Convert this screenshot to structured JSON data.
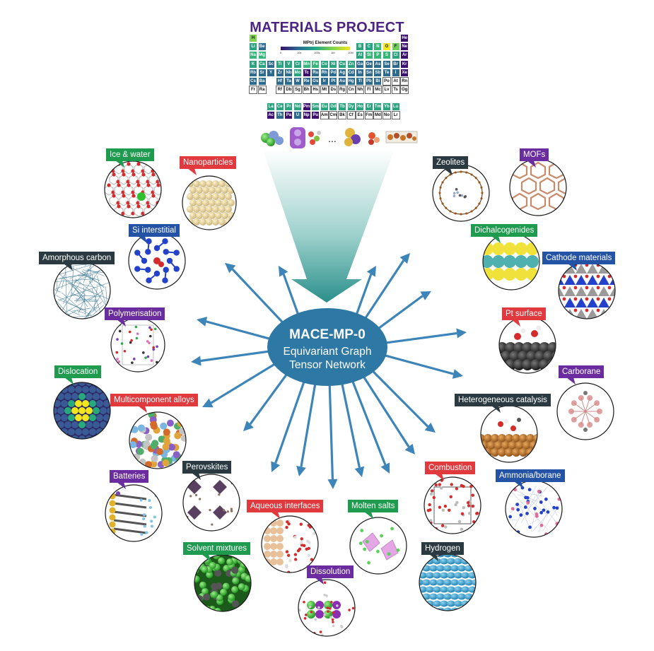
{
  "header": {
    "title": "MATERIALS PROJECT"
  },
  "periodic_table": {
    "colorbar_title": "MPtrj Element Counts",
    "colorbar_ticks": [
      "0",
      "10k",
      "100k",
      "1M",
      "10M"
    ],
    "elements": [
      {
        "s": "H",
        "r": 0,
        "c": 0,
        "col": "#7fd34e"
      },
      {
        "s": "He",
        "r": 0,
        "c": 17,
        "col": "#3b0f70"
      },
      {
        "s": "Li",
        "r": 1,
        "c": 0,
        "col": "#2aa37f"
      },
      {
        "s": "Be",
        "r": 1,
        "c": 1,
        "col": "#2c6a8e"
      },
      {
        "s": "B",
        "r": 1,
        "c": 12,
        "col": "#2aa37f"
      },
      {
        "s": "C",
        "r": 1,
        "c": 13,
        "col": "#21a685"
      },
      {
        "s": "N",
        "r": 1,
        "c": 14,
        "col": "#35b779"
      },
      {
        "s": "O",
        "r": 1,
        "c": 15,
        "col": "#f3e51e"
      },
      {
        "s": "F",
        "r": 1,
        "c": 16,
        "col": "#6ece58"
      },
      {
        "s": "Ne",
        "r": 1,
        "c": 17,
        "col": "#3b0f70"
      },
      {
        "s": "Na",
        "r": 2,
        "c": 0,
        "col": "#35b779"
      },
      {
        "s": "Mg",
        "r": 2,
        "c": 1,
        "col": "#35b779"
      },
      {
        "s": "Al",
        "r": 2,
        "c": 12,
        "col": "#2aa37f"
      },
      {
        "s": "Si",
        "r": 2,
        "c": 13,
        "col": "#35b779"
      },
      {
        "s": "P",
        "r": 2,
        "c": 14,
        "col": "#35b779"
      },
      {
        "s": "S",
        "r": 2,
        "c": 15,
        "col": "#35b779"
      },
      {
        "s": "Cl",
        "r": 2,
        "c": 16,
        "col": "#2aa37f"
      },
      {
        "s": "Ar",
        "r": 2,
        "c": 17,
        "col": "#3b0f70"
      },
      {
        "s": "K",
        "r": 3,
        "c": 0,
        "col": "#2aa37f"
      },
      {
        "s": "Ca",
        "r": 3,
        "c": 1,
        "col": "#2aa37f"
      },
      {
        "s": "Sc",
        "r": 3,
        "c": 2,
        "col": "#2c6a8e"
      },
      {
        "s": "Ti",
        "r": 3,
        "c": 3,
        "col": "#2aa37f"
      },
      {
        "s": "V",
        "r": 3,
        "c": 4,
        "col": "#2aa37f"
      },
      {
        "s": "Cr",
        "r": 3,
        "c": 5,
        "col": "#2aa37f"
      },
      {
        "s": "Mn",
        "r": 3,
        "c": 6,
        "col": "#35b779"
      },
      {
        "s": "Fe",
        "r": 3,
        "c": 7,
        "col": "#35b779"
      },
      {
        "s": "Co",
        "r": 3,
        "c": 8,
        "col": "#2aa37f"
      },
      {
        "s": "Ni",
        "r": 3,
        "c": 9,
        "col": "#2aa37f"
      },
      {
        "s": "Cu",
        "r": 3,
        "c": 10,
        "col": "#2aa37f"
      },
      {
        "s": "Zn",
        "r": 3,
        "c": 11,
        "col": "#2aa37f"
      },
      {
        "s": "Ga",
        "r": 3,
        "c": 12,
        "col": "#2c6a8e"
      },
      {
        "s": "Ge",
        "r": 3,
        "c": 13,
        "col": "#2c6a8e"
      },
      {
        "s": "As",
        "r": 3,
        "c": 14,
        "col": "#2c6a8e"
      },
      {
        "s": "Se",
        "r": 3,
        "c": 15,
        "col": "#2c6a8e"
      },
      {
        "s": "Br",
        "r": 3,
        "c": 16,
        "col": "#2c6a8e"
      },
      {
        "s": "Kr",
        "r": 3,
        "c": 17,
        "col": "#3b0f70"
      },
      {
        "s": "Rb",
        "r": 4,
        "c": 0,
        "col": "#2c6a8e"
      },
      {
        "s": "Sr",
        "r": 4,
        "c": 1,
        "col": "#2c6a8e"
      },
      {
        "s": "Y",
        "r": 4,
        "c": 2,
        "col": "#2c6a8e"
      },
      {
        "s": "Zr",
        "r": 4,
        "c": 3,
        "col": "#2c6a8e"
      },
      {
        "s": "Nb",
        "r": 4,
        "c": 4,
        "col": "#2c6a8e"
      },
      {
        "s": "Mo",
        "r": 4,
        "c": 5,
        "col": "#2aa37f"
      },
      {
        "s": "Tc",
        "r": 4,
        "c": 6,
        "col": "#3b0f70"
      },
      {
        "s": "Ru",
        "r": 4,
        "c": 7,
        "col": "#2c6a8e"
      },
      {
        "s": "Rh",
        "r": 4,
        "c": 8,
        "col": "#2c6a8e"
      },
      {
        "s": "Pd",
        "r": 4,
        "c": 9,
        "col": "#2c6a8e"
      },
      {
        "s": "Ag",
        "r": 4,
        "c": 10,
        "col": "#2c6a8e"
      },
      {
        "s": "Cd",
        "r": 4,
        "c": 11,
        "col": "#2c6a8e"
      },
      {
        "s": "In",
        "r": 4,
        "c": 12,
        "col": "#2c6a8e"
      },
      {
        "s": "Sn",
        "r": 4,
        "c": 13,
        "col": "#2c6a8e"
      },
      {
        "s": "Sb",
        "r": 4,
        "c": 14,
        "col": "#2c6a8e"
      },
      {
        "s": "Te",
        "r": 4,
        "c": 15,
        "col": "#2c6a8e"
      },
      {
        "s": "I",
        "r": 4,
        "c": 16,
        "col": "#2c6a8e"
      },
      {
        "s": "Xe",
        "r": 4,
        "c": 17,
        "col": "#3b0f70"
      },
      {
        "s": "Cs",
        "r": 5,
        "c": 0,
        "col": "#2c6a8e"
      },
      {
        "s": "Ba",
        "r": 5,
        "c": 1,
        "col": "#2c6a8e"
      },
      {
        "s": "Hf",
        "r": 5,
        "c": 3,
        "col": "#2c6a8e"
      },
      {
        "s": "Ta",
        "r": 5,
        "c": 4,
        "col": "#2c6a8e"
      },
      {
        "s": "W",
        "r": 5,
        "c": 5,
        "col": "#2c6a8e"
      },
      {
        "s": "Re",
        "r": 5,
        "c": 6,
        "col": "#2c6a8e"
      },
      {
        "s": "Os",
        "r": 5,
        "c": 7,
        "col": "#2c6a8e"
      },
      {
        "s": "Ir",
        "r": 5,
        "c": 8,
        "col": "#2c6a8e"
      },
      {
        "s": "Pt",
        "r": 5,
        "c": 9,
        "col": "#2c6a8e"
      },
      {
        "s": "Au",
        "r": 5,
        "c": 10,
        "col": "#2c6a8e"
      },
      {
        "s": "Hg",
        "r": 5,
        "c": 11,
        "col": "#2c6a8e"
      },
      {
        "s": "Tl",
        "r": 5,
        "c": 12,
        "col": "#2c6a8e"
      },
      {
        "s": "Pb",
        "r": 5,
        "c": 13,
        "col": "#2c6a8e"
      },
      {
        "s": "Bi",
        "r": 5,
        "c": 14,
        "col": "#2c6a8e"
      },
      {
        "s": "Po",
        "r": 5,
        "c": 15,
        "col": "#ffffff"
      },
      {
        "s": "At",
        "r": 5,
        "c": 16,
        "col": "#ffffff"
      },
      {
        "s": "Rn",
        "r": 5,
        "c": 17,
        "col": "#ffffff"
      },
      {
        "s": "Fr",
        "r": 6,
        "c": 0,
        "col": "#ffffff"
      },
      {
        "s": "Ra",
        "r": 6,
        "c": 1,
        "col": "#ffffff"
      },
      {
        "s": "Rf",
        "r": 6,
        "c": 3,
        "col": "#ffffff"
      },
      {
        "s": "Db",
        "r": 6,
        "c": 4,
        "col": "#ffffff"
      },
      {
        "s": "Sg",
        "r": 6,
        "c": 5,
        "col": "#ffffff"
      },
      {
        "s": "Bh",
        "r": 6,
        "c": 6,
        "col": "#ffffff"
      },
      {
        "s": "Hs",
        "r": 6,
        "c": 7,
        "col": "#ffffff"
      },
      {
        "s": "Mt",
        "r": 6,
        "c": 8,
        "col": "#ffffff"
      },
      {
        "s": "Ds",
        "r": 6,
        "c": 9,
        "col": "#ffffff"
      },
      {
        "s": "Rg",
        "r": 6,
        "c": 10,
        "col": "#ffffff"
      },
      {
        "s": "Cn",
        "r": 6,
        "c": 11,
        "col": "#ffffff"
      },
      {
        "s": "Nh",
        "r": 6,
        "c": 12,
        "col": "#ffffff"
      },
      {
        "s": "Fl",
        "r": 6,
        "c": 13,
        "col": "#ffffff"
      },
      {
        "s": "Mc",
        "r": 6,
        "c": 14,
        "col": "#ffffff"
      },
      {
        "s": "Lv",
        "r": 6,
        "c": 15,
        "col": "#ffffff"
      },
      {
        "s": "Ts",
        "r": 6,
        "c": 16,
        "col": "#ffffff"
      },
      {
        "s": "Og",
        "r": 6,
        "c": 17,
        "col": "#ffffff"
      },
      {
        "s": "La",
        "r": 7.8,
        "c": 2,
        "col": "#2aa37f"
      },
      {
        "s": "Ce",
        "r": 7.8,
        "c": 3,
        "col": "#2aa37f"
      },
      {
        "s": "Pr",
        "r": 7.8,
        "c": 4,
        "col": "#2aa37f"
      },
      {
        "s": "Nd",
        "r": 7.8,
        "c": 5,
        "col": "#2aa37f"
      },
      {
        "s": "Pm",
        "r": 7.8,
        "c": 6,
        "col": "#3b0f70"
      },
      {
        "s": "Sm",
        "r": 7.8,
        "c": 7,
        "col": "#2aa37f"
      },
      {
        "s": "Eu",
        "r": 7.8,
        "c": 8,
        "col": "#2aa37f"
      },
      {
        "s": "Gd",
        "r": 7.8,
        "c": 9,
        "col": "#2aa37f"
      },
      {
        "s": "Tb",
        "r": 7.8,
        "c": 10,
        "col": "#2aa37f"
      },
      {
        "s": "Dy",
        "r": 7.8,
        "c": 11,
        "col": "#2aa37f"
      },
      {
        "s": "Ho",
        "r": 7.8,
        "c": 12,
        "col": "#2aa37f"
      },
      {
        "s": "Er",
        "r": 7.8,
        "c": 13,
        "col": "#2aa37f"
      },
      {
        "s": "Tm",
        "r": 7.8,
        "c": 14,
        "col": "#2aa37f"
      },
      {
        "s": "Yb",
        "r": 7.8,
        "c": 15,
        "col": "#2aa37f"
      },
      {
        "s": "Lu",
        "r": 7.8,
        "c": 16,
        "col": "#2aa37f"
      },
      {
        "s": "Ac",
        "r": 8.8,
        "c": 2,
        "col": "#3b0f70"
      },
      {
        "s": "Th",
        "r": 8.8,
        "c": 3,
        "col": "#2c6a8e"
      },
      {
        "s": "Pa",
        "r": 8.8,
        "c": 4,
        "col": "#3b0f70"
      },
      {
        "s": "U",
        "r": 8.8,
        "c": 5,
        "col": "#2c6a8e"
      },
      {
        "s": "Np",
        "r": 8.8,
        "c": 6,
        "col": "#3b0f70"
      },
      {
        "s": "Pu",
        "r": 8.8,
        "c": 7,
        "col": "#3b0f70"
      },
      {
        "s": "Am",
        "r": 8.8,
        "c": 8,
        "col": "#ffffff"
      },
      {
        "s": "Cm",
        "r": 8.8,
        "c": 9,
        "col": "#ffffff"
      },
      {
        "s": "Bk",
        "r": 8.8,
        "c": 10,
        "col": "#ffffff"
      },
      {
        "s": "Cf",
        "r": 8.8,
        "c": 11,
        "col": "#ffffff"
      },
      {
        "s": "Es",
        "r": 8.8,
        "c": 12,
        "col": "#ffffff"
      },
      {
        "s": "Fm",
        "r": 8.8,
        "c": 13,
        "col": "#ffffff"
      },
      {
        "s": "Md",
        "r": 8.8,
        "c": 14,
        "col": "#ffffff"
      },
      {
        "s": "No",
        "r": 8.8,
        "c": 15,
        "col": "#ffffff"
      },
      {
        "s": "Lr",
        "r": 8.8,
        "c": 16,
        "col": "#ffffff"
      }
    ]
  },
  "ellipsis": "...",
  "center": {
    "title": "MACE-MP-0",
    "subtitle_line1": "Equivariant Graph",
    "subtitle_line2": "Tensor Network",
    "fill": "#2e78a5"
  },
  "colors": {
    "green": "#1f9b4f",
    "red": "#e03a3e",
    "blue": "#2453a6",
    "dark": "#2b3a41",
    "purple": "#6a2c9e",
    "arrow": "#3d84b8"
  },
  "applications": [
    {
      "id": "ice-and-water",
      "label": "Ice & water",
      "color": "green",
      "icon": "ice-water-icon"
    },
    {
      "id": "nanoparticles",
      "label": "Nanoparticles",
      "color": "red",
      "icon": "nanoparticle-icon"
    },
    {
      "id": "si-interstitial",
      "label": "Si interstitial",
      "color": "blue",
      "icon": "si-interstitial-icon"
    },
    {
      "id": "amorphous-carbon",
      "label": "Amorphous carbon",
      "color": "dark",
      "icon": "amorphous-carbon-icon"
    },
    {
      "id": "polymerisation",
      "label": "Polymerisation",
      "color": "purple",
      "icon": "polymer-icon"
    },
    {
      "id": "dislocation",
      "label": "Dislocation",
      "color": "green",
      "icon": "dislocation-icon"
    },
    {
      "id": "multicomponent-alloys",
      "label": "Multicomponent alloys",
      "color": "red",
      "icon": "alloy-icon"
    },
    {
      "id": "batteries",
      "label": "Batteries",
      "color": "purple",
      "icon": "battery-icon"
    },
    {
      "id": "perovskites",
      "label": "Perovskites",
      "color": "dark",
      "icon": "perovskite-icon"
    },
    {
      "id": "solvent-mixtures",
      "label": "Solvent mixtures",
      "color": "green",
      "icon": "solvent-icon"
    },
    {
      "id": "aqueous-interfaces",
      "label": "Aqueous interfaces",
      "color": "red",
      "icon": "aqueous-interface-icon"
    },
    {
      "id": "dissolution",
      "label": "Dissolution",
      "color": "purple",
      "icon": "dissolution-icon"
    },
    {
      "id": "molten-salts",
      "label": "Molten salts",
      "color": "green",
      "icon": "molten-salt-icon"
    },
    {
      "id": "hydrogen",
      "label": "Hydrogen",
      "color": "dark",
      "icon": "hydrogen-icon"
    },
    {
      "id": "combustion",
      "label": "Combustion",
      "color": "red",
      "icon": "combustion-icon"
    },
    {
      "id": "ammonia-borane",
      "label": "Ammonia/borane",
      "color": "blue",
      "icon": "ammonia-borane-icon"
    },
    {
      "id": "heterogeneous-catalysis",
      "label": "Heterogeneous catalysis",
      "color": "dark",
      "icon": "catalysis-icon"
    },
    {
      "id": "carborane",
      "label": "Carborane",
      "color": "purple",
      "icon": "carborane-icon"
    },
    {
      "id": "pt-surface",
      "label": "Pt surface",
      "color": "red",
      "icon": "pt-surface-icon"
    },
    {
      "id": "cathode-materials",
      "label": "Cathode materials",
      "color": "blue",
      "icon": "cathode-icon"
    },
    {
      "id": "dichalcogenides",
      "label": "Dichalcogenides",
      "color": "green",
      "icon": "dichalcogenide-icon"
    },
    {
      "id": "zeolites",
      "label": "Zeolites",
      "color": "dark",
      "icon": "zeolite-icon"
    },
    {
      "id": "mofs",
      "label": "MOFs",
      "color": "purple",
      "icon": "mof-icon"
    }
  ]
}
